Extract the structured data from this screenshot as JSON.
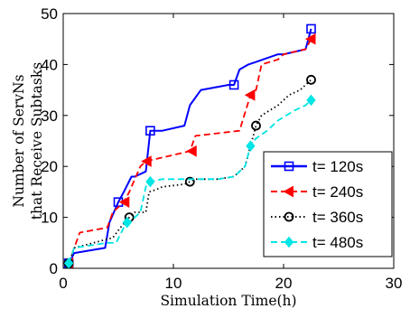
{
  "chart_data": {
    "type": "line",
    "title": "",
    "xlabel": "Simulation Time(h)",
    "ylabel_lines": [
      "Number of ServNs",
      "that Receive Subtasks"
    ],
    "xlim": [
      0,
      30
    ],
    "ylim": [
      0,
      50
    ],
    "xticks": [
      0,
      10,
      20,
      30
    ],
    "yticks": [
      0,
      10,
      20,
      30,
      40,
      50
    ],
    "grid": false,
    "legend_position": "lower-right",
    "series": [
      {
        "name": "t= 120s",
        "color": "#0000ff",
        "line_style": "solid",
        "marker": "square",
        "x": [
          0.5,
          1.0,
          3.8,
          4.2,
          5.0,
          5.5,
          6.2,
          6.5,
          7.5,
          7.9,
          9.0,
          11.0,
          11.5,
          12.5,
          15.0,
          15.5,
          16.0,
          16.8,
          17.5,
          19.5,
          20.0,
          22.0,
          22.5
        ],
        "y": [
          1,
          3,
          4,
          9,
          13,
          15,
          18,
          18,
          19,
          27,
          27,
          28,
          32,
          35,
          36,
          36,
          39,
          40,
          40.5,
          42,
          42,
          43,
          47
        ],
        "marker_x": [
          0.5,
          5.0,
          7.9,
          15.5,
          22.5
        ],
        "marker_y": [
          1,
          13,
          27,
          36,
          47
        ]
      },
      {
        "name": "t= 240s",
        "color": "#ff0000",
        "line_style": "dashed",
        "marker": "triangle-left",
        "x": [
          0.5,
          1.0,
          1.5,
          4.0,
          4.5,
          5.5,
          6.0,
          7.0,
          7.5,
          11.5,
          12.0,
          16.0,
          17.0,
          17.5,
          18.0,
          19.5,
          20.0,
          22.0,
          22.5
        ],
        "y": [
          1,
          4,
          7,
          8,
          11,
          13,
          15,
          20,
          21,
          23,
          26,
          27,
          34,
          35,
          40,
          41,
          42,
          43,
          45
        ],
        "marker_x": [
          0.5,
          5.6,
          7.6,
          11.7,
          17.0,
          22.5
        ],
        "marker_y": [
          1,
          13,
          21,
          23,
          34,
          45
        ]
      },
      {
        "name": "t= 360s",
        "color": "#000000",
        "line_style": "dotted",
        "marker": "circle",
        "x": [
          0.5,
          1.0,
          4.5,
          5.2,
          6.0,
          6.5,
          7.5,
          7.8,
          8.5,
          9.0,
          11.0,
          11.5,
          12.0,
          14.0,
          15.5,
          16.5,
          17.5,
          18.0,
          19.5,
          20.5,
          21.5,
          22.5
        ],
        "y": [
          1,
          4,
          6,
          8,
          10,
          11,
          11,
          15,
          15.5,
          16,
          16.5,
          17,
          17.5,
          17.5,
          18,
          20,
          28,
          30,
          32,
          34,
          35,
          37
        ],
        "marker_x": [
          0.5,
          6.0,
          11.5,
          17.5,
          22.5
        ],
        "marker_y": [
          1,
          10,
          17,
          28,
          37
        ]
      },
      {
        "name": "t= 480s",
        "color": "#00e5e5",
        "line_style": "dashed",
        "marker": "diamond",
        "x": [
          0.5,
          1.0,
          4.0,
          4.8,
          5.5,
          6.0,
          7.0,
          7.5,
          7.9,
          9.0,
          11.5,
          14.0,
          15.5,
          16.5,
          17.0,
          17.5,
          18.5,
          19.5,
          21.0,
          22.0,
          22.5
        ],
        "y": [
          1,
          4,
          5,
          5,
          8,
          9,
          11,
          16,
          17,
          17.5,
          17.5,
          17.5,
          18,
          20,
          24,
          25.5,
          27,
          29,
          31,
          32,
          33
        ],
        "marker_x": [
          0.5,
          5.8,
          7.9,
          17.0,
          22.5
        ],
        "marker_y": [
          1,
          9,
          17,
          24,
          33
        ]
      }
    ]
  }
}
